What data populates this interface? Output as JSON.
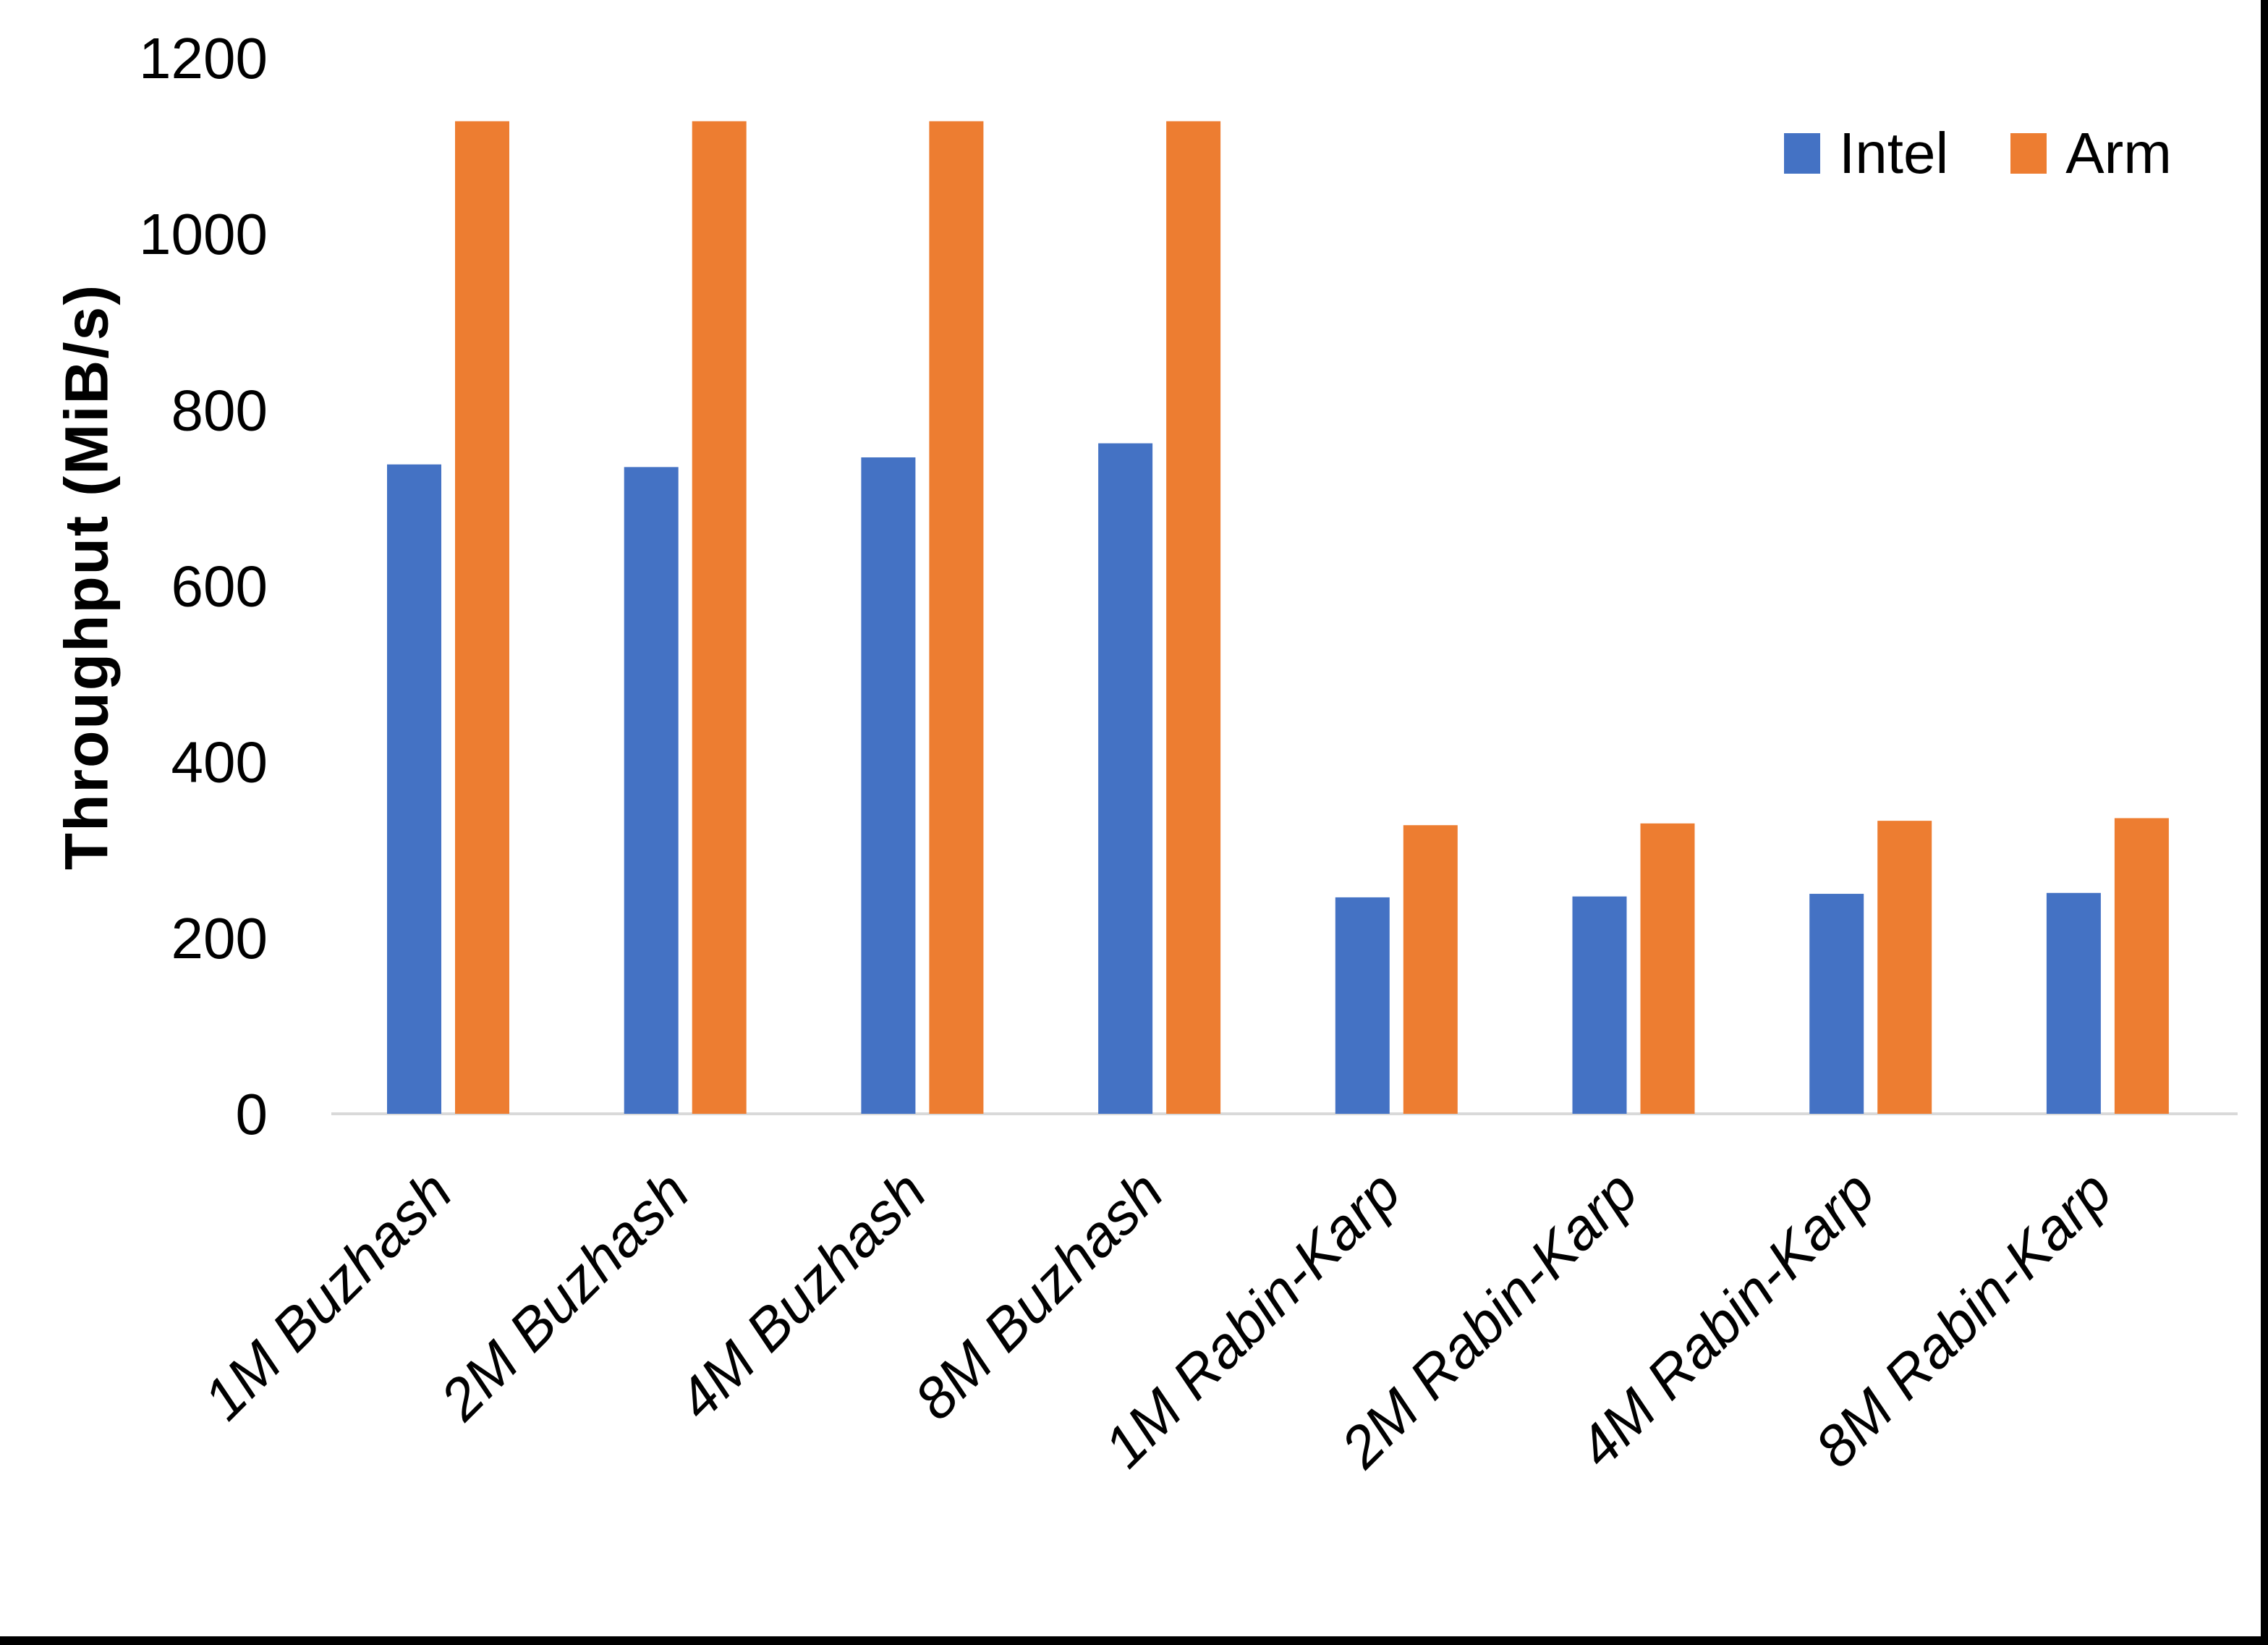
{
  "chart_data": {
    "type": "bar",
    "title": "",
    "categories": [
      "1M Buzhash",
      "2M Buzhash",
      "4M Buzhash",
      "8M Buzhash",
      "1M Rabin-Karp",
      "2M Rabin-Karp",
      "4M Rabin-Karp",
      "8M Rabin-Karp"
    ],
    "series": [
      {
        "name": "Intel",
        "color": "#4472C4",
        "values": [
          738,
          735,
          746,
          762,
          246,
          247,
          250,
          251
        ]
      },
      {
        "name": "Arm",
        "color": "#ED7D31",
        "values": [
          1128,
          1128,
          1128,
          1128,
          328,
          330,
          333,
          336
        ]
      }
    ],
    "xlabel": "",
    "ylabel": "Throughput (MiB/s)",
    "ylim": [
      0,
      1200
    ],
    "yticks": [
      0,
      200,
      400,
      600,
      800,
      1000,
      1200
    ],
    "grid": false,
    "legend_position": "top-right",
    "axis_line_color": "#D9D9D9",
    "category_label_style": "italic, rotated 45deg"
  }
}
